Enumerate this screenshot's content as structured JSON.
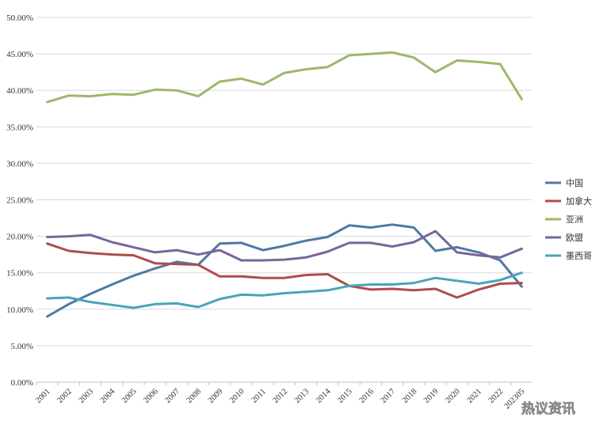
{
  "chart_data": {
    "type": "line",
    "categories": [
      "2001",
      "2002",
      "2003",
      "2004",
      "2005",
      "2006",
      "2007",
      "2008",
      "2009",
      "2010",
      "2011",
      "2012",
      "2013",
      "2014",
      "2015",
      "2016",
      "2017",
      "2018",
      "2019",
      "2020",
      "2021",
      "2022",
      "202305"
    ],
    "y_ticks": [
      "0.00%",
      "5.00%",
      "10.00%",
      "15.00%",
      "20.00%",
      "25.00%",
      "30.00%",
      "35.00%",
      "40.00%",
      "45.00%",
      "50.00%"
    ],
    "ylim": [
      0,
      50
    ],
    "grid": true,
    "legend_position": "right",
    "series": [
      {
        "name": "中国",
        "color": "#4e7aa3",
        "values": [
          9.0,
          10.7,
          12.1,
          13.4,
          14.6,
          15.6,
          16.5,
          16.1,
          19.0,
          19.1,
          18.1,
          18.7,
          19.4,
          19.9,
          21.5,
          21.2,
          21.6,
          21.2,
          18.0,
          18.5,
          17.8,
          16.7,
          13.1
        ]
      },
      {
        "name": "加拿大",
        "color": "#b04c4b",
        "values": [
          19.0,
          18.0,
          17.7,
          17.5,
          17.4,
          16.3,
          16.2,
          16.1,
          14.5,
          14.5,
          14.3,
          14.3,
          14.7,
          14.8,
          13.2,
          12.7,
          12.8,
          12.6,
          12.8,
          11.6,
          12.7,
          13.5,
          13.6
        ]
      },
      {
        "name": "亚洲",
        "color": "#9cb86a",
        "values": [
          38.4,
          39.3,
          39.2,
          39.5,
          39.4,
          40.1,
          40.0,
          39.2,
          41.2,
          41.6,
          40.8,
          42.4,
          42.9,
          43.2,
          44.8,
          45.0,
          45.2,
          44.5,
          42.5,
          44.1,
          43.9,
          43.6,
          38.8
        ]
      },
      {
        "name": "欧盟",
        "color": "#7a659a",
        "values": [
          19.9,
          20.0,
          20.2,
          19.2,
          18.5,
          17.8,
          18.1,
          17.5,
          18.1,
          16.7,
          16.7,
          16.8,
          17.1,
          17.9,
          19.1,
          19.1,
          18.6,
          19.2,
          20.7,
          17.8,
          17.4,
          17.1,
          18.3
        ]
      },
      {
        "name": "墨西哥",
        "color": "#4aa3ba",
        "values": [
          11.5,
          11.6,
          11.0,
          10.6,
          10.2,
          10.7,
          10.8,
          10.3,
          11.4,
          12.0,
          11.9,
          12.2,
          12.4,
          12.6,
          13.2,
          13.4,
          13.4,
          13.6,
          14.3,
          13.9,
          13.5,
          14.0,
          15.0
        ]
      }
    ]
  },
  "watermark": "热议资讯"
}
